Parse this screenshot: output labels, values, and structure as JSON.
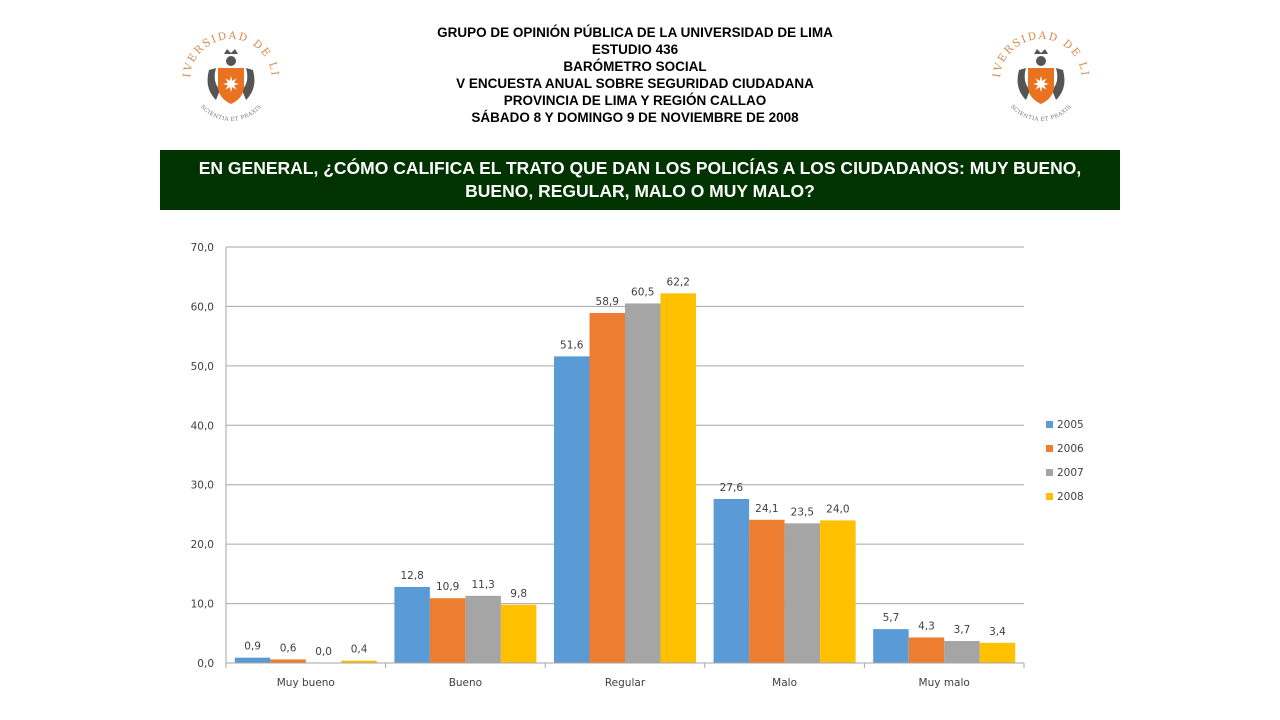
{
  "header": {
    "lines": [
      "GRUPO DE OPINIÓN PÚBLICA DE LA UNIVERSIDAD DE LIMA",
      "ESTUDIO 436",
      "BARÓMETRO SOCIAL",
      "V ENCUESTA ANUAL SOBRE SEGURIDAD CIUDADANA",
      "PROVINCIA DE LIMA Y REGIÓN CALLAO",
      "SÁBADO 8 Y DOMINGO 9 DE NOVIEMBRE DE 2008"
    ]
  },
  "logo": {
    "arc_text": "UNIVERSIDAD DE LIMA",
    "motto": "SCIENTIA ET PRAXIS",
    "shield_color": "#e8721f",
    "text_color": "#d9894a"
  },
  "banner": {
    "text": "EN GENERAL, ¿CÓMO CALIFICA EL TRATO QUE DAN LOS POLICÍAS A LOS CIUDADANOS: MUY BUENO, BUENO, REGULAR, MALO O MUY MALO?",
    "background": "#003300"
  },
  "chart_data": {
    "type": "bar",
    "categories": [
      "Muy bueno",
      "Bueno",
      "Regular",
      "Malo",
      "Muy malo"
    ],
    "series": [
      {
        "name": "2005",
        "color": "#5b9bd5",
        "values": [
          0.9,
          12.8,
          51.6,
          27.6,
          5.7
        ]
      },
      {
        "name": "2006",
        "color": "#ed7d31",
        "values": [
          0.6,
          10.9,
          58.9,
          24.1,
          4.3
        ]
      },
      {
        "name": "2007",
        "color": "#a5a5a5",
        "values": [
          0.0,
          11.3,
          60.5,
          23.5,
          3.7
        ]
      },
      {
        "name": "2008",
        "color": "#ffc000",
        "values": [
          0.4,
          9.8,
          62.2,
          24.0,
          3.4
        ]
      }
    ],
    "ylim": [
      0,
      70
    ],
    "yticks": [
      0,
      10,
      20,
      30,
      40,
      50,
      60,
      70
    ],
    "ytick_labels": [
      "0,0",
      "10,0",
      "20,0",
      "30,0",
      "40,0",
      "50,0",
      "60,0",
      "70,0"
    ],
    "data_labels": [
      [
        "0,9",
        "12,8",
        "51,6",
        "27,6",
        "5,7"
      ],
      [
        "0,6",
        "10,9",
        "58,9",
        "24,1",
        "4,3"
      ],
      [
        "0,0",
        "11,3",
        "60,5",
        "23,5",
        "3,7"
      ],
      [
        "0,4",
        "9,8",
        "62,2",
        "24,0",
        "3,4"
      ]
    ],
    "grid": true,
    "legend": "right"
  }
}
